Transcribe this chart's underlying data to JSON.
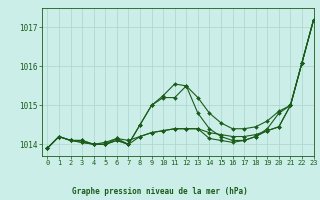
{
  "title": "Graphe pression niveau de la mer (hPa)",
  "background_color": "#cceee8",
  "grid_color": "#aad4cc",
  "line_color": "#1a5c1a",
  "xlim": [
    -0.5,
    23
  ],
  "ylim": [
    1013.7,
    1017.5
  ],
  "yticks": [
    1014,
    1015,
    1016,
    1017
  ],
  "xticks": [
    0,
    1,
    2,
    3,
    4,
    5,
    6,
    7,
    8,
    9,
    10,
    11,
    12,
    13,
    14,
    15,
    16,
    17,
    18,
    19,
    20,
    21,
    22,
    23
  ],
  "series": [
    [
      1013.9,
      1014.2,
      1014.1,
      1014.1,
      1014.0,
      1014.0,
      1014.1,
      1014.0,
      1014.5,
      1015.0,
      1015.2,
      1015.2,
      1015.5,
      1014.8,
      1014.4,
      1014.2,
      1014.1,
      1014.1,
      1014.2,
      1014.4,
      1014.8,
      1015.0,
      1016.1,
      1017.2
    ],
    [
      1013.9,
      1014.2,
      1014.1,
      1014.1,
      1014.0,
      1014.0,
      1014.15,
      1014.0,
      1014.5,
      1015.0,
      1015.25,
      1015.55,
      1015.5,
      1015.2,
      1014.8,
      1014.55,
      1014.4,
      1014.4,
      1014.45,
      1014.6,
      1014.85,
      1015.0,
      1016.1,
      1017.2
    ],
    [
      1013.9,
      1014.2,
      1014.1,
      1014.05,
      1014.0,
      1014.05,
      1014.15,
      1014.1,
      1014.2,
      1014.3,
      1014.35,
      1014.4,
      1014.4,
      1014.4,
      1014.3,
      1014.25,
      1014.2,
      1014.2,
      1014.25,
      1014.35,
      1014.45,
      1015.0,
      1016.1,
      1017.2
    ],
    [
      1013.9,
      1014.2,
      1014.1,
      1014.05,
      1014.0,
      1014.0,
      1014.1,
      1014.0,
      1014.2,
      1014.3,
      1014.35,
      1014.4,
      1014.4,
      1014.4,
      1014.15,
      1014.1,
      1014.05,
      1014.1,
      1014.2,
      1014.35,
      1014.45,
      1015.0,
      1016.1,
      1017.2
    ]
  ]
}
